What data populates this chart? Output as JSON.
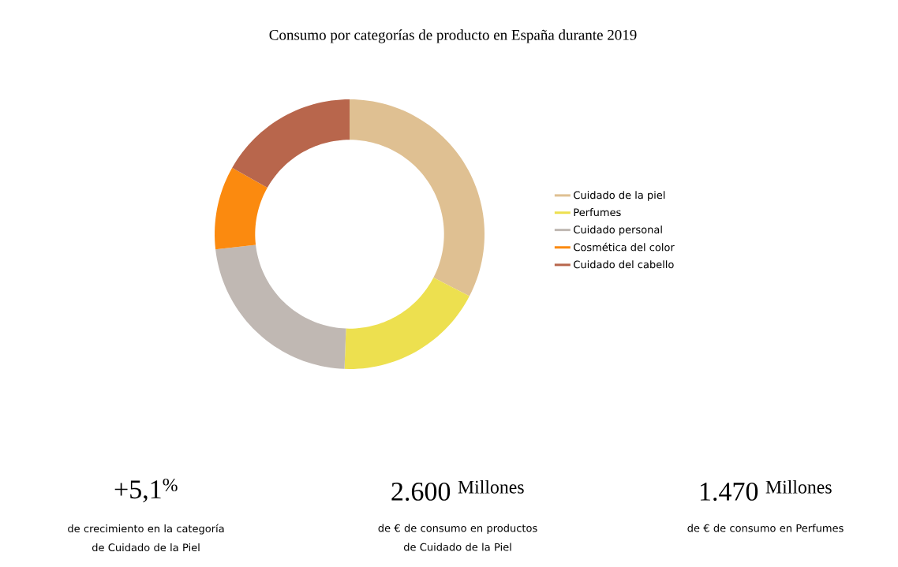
{
  "chart_data": {
    "type": "donut",
    "title": "Consumo por categorías de producto en España durante 2019",
    "categories": [
      "Cuidado de la piel",
      "Perfumes",
      "Cuidado personal",
      "Cosmética del color",
      "Cuidado del cabello"
    ],
    "values": [
      32.6,
      18,
      22.6,
      10,
      16.8
    ],
    "colors": [
      "#dfc092",
      "#ede04f",
      "#c0b8b3",
      "#fb8a0f",
      "#b8664c"
    ],
    "legend": "right",
    "annotations": [
      "+5,1$^{%}$",
      "de crecimiento en la categoría de Cuidado de la Piel",
      "2.600 $^{Millones}$",
      "de € de consumo en productos de Cuidado de la Piel",
      "1.470 $^{Millones}$",
      "de € de consumo en Perfumes"
    ]
  }
}
